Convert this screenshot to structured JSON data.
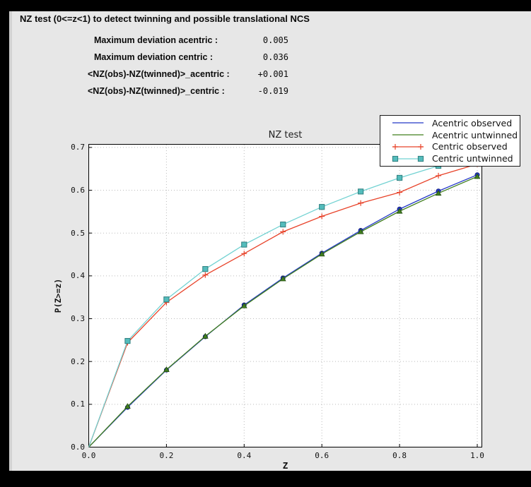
{
  "window": {
    "title": "NZ test (0<=z<1) to detect twinning and possible translational NCS"
  },
  "stats": [
    {
      "label": "Maximum deviation acentric :",
      "value": "0.005"
    },
    {
      "label": "Maximum deviation centric :",
      "value": "0.036"
    },
    {
      "label": "<NZ(obs)-NZ(twinned)>_acentric :",
      "value": "+0.001"
    },
    {
      "label": "<NZ(obs)-NZ(twinned)>_centric :",
      "value": "-0.019"
    }
  ],
  "colors": {
    "panel_bg": "#e7e7e7",
    "plot_bg": "#ffffff",
    "grid": "#bbbbbb",
    "frame": "#000000"
  },
  "chart_data": {
    "type": "line",
    "title": "NZ test",
    "xlabel": "Z",
    "ylabel": "P(Z>=z)",
    "xlim": [
      0.0,
      1.0
    ],
    "ylim": [
      0.0,
      0.7
    ],
    "grid": true,
    "legend_position": "top-right",
    "x_ticks": [
      "0.0",
      "0.2",
      "0.4",
      "0.6",
      "0.8",
      "1.0"
    ],
    "y_ticks": [
      "0.0",
      "0.1",
      "0.2",
      "0.3",
      "0.4",
      "0.5",
      "0.6",
      "0.7"
    ],
    "x": [
      0.0,
      0.1,
      0.2,
      0.3,
      0.4,
      0.5,
      0.6,
      0.7,
      0.8,
      0.9,
      1.0
    ],
    "series": [
      {
        "name": "Acentric observed",
        "color": "#2438c8",
        "marker": "circle",
        "marker_fill": "#2438c8",
        "marker_edge": "#101c7a",
        "legend_markers": false,
        "values": [
          0.0,
          0.093,
          0.18,
          0.258,
          0.332,
          0.395,
          0.453,
          0.506,
          0.556,
          0.598,
          0.636
        ]
      },
      {
        "name": "Acentric untwinned",
        "color": "#417f1f",
        "marker": "triangle",
        "marker_fill": "#417f1f",
        "marker_edge": "#234d10",
        "legend_markers": false,
        "values": [
          0.0,
          0.095,
          0.181,
          0.259,
          0.33,
          0.393,
          0.451,
          0.503,
          0.551,
          0.593,
          0.632
        ]
      },
      {
        "name": "Centric observed",
        "color": "#e8432a",
        "marker": "plus",
        "marker_fill": "#e8432a",
        "marker_edge": "#e8432a",
        "legend_markers": true,
        "values": [
          0.0,
          0.244,
          0.338,
          0.402,
          0.452,
          0.503,
          0.539,
          0.57,
          0.595,
          0.634,
          0.661
        ]
      },
      {
        "name": "Centric untwinned",
        "color": "#72d2d2",
        "marker": "square",
        "marker_fill": "#54bcbc",
        "marker_edge": "#2f7f7f",
        "legend_markers": true,
        "values": [
          0.0,
          0.248,
          0.345,
          0.416,
          0.473,
          0.52,
          0.561,
          0.597,
          0.629,
          0.657,
          0.683
        ]
      }
    ]
  }
}
